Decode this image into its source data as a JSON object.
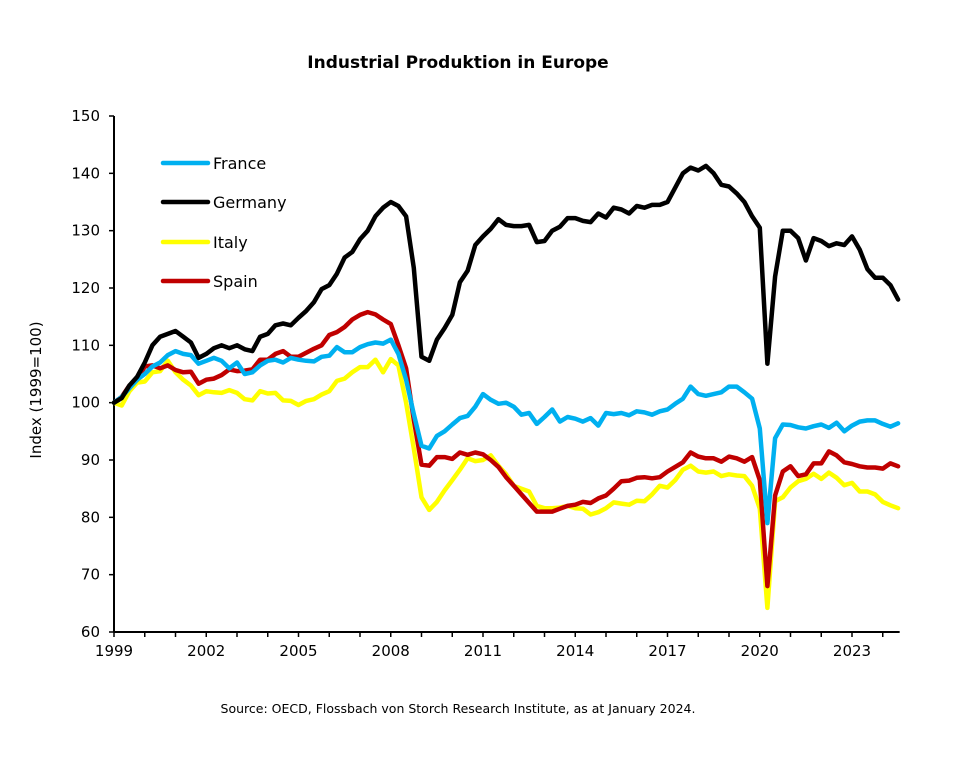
{
  "chart_data": {
    "type": "line",
    "title": "Industrial Produktion in Europe",
    "xlabel": "",
    "ylabel": "Index (1999=100)",
    "source": "Source: OECD, Flossbach von Storch Research Institute, as at January 2024.",
    "xlim": [
      1999,
      2024.55
    ],
    "ylim": [
      60,
      150
    ],
    "x_ticks": [
      "1999",
      "2002",
      "2005",
      "2008",
      "2011",
      "2014",
      "2017",
      "2020",
      "2023"
    ],
    "y_ticks": [
      "60",
      "70",
      "80",
      "90",
      "100",
      "110",
      "120",
      "130",
      "140",
      "150"
    ],
    "grid": false,
    "legend_position": "top-left",
    "x_start": 1999,
    "x_step": 0.25,
    "series": [
      {
        "name": "France",
        "color": "#00b0f0",
        "values": [
          100,
          101,
          102.5,
          104,
          105,
          106.3,
          107,
          108.3,
          109,
          108.5,
          108.3,
          106.8,
          107.3,
          107.8,
          107.3,
          106,
          107,
          105,
          105.3,
          106.5,
          107.3,
          107.5,
          107,
          107.8,
          107.5,
          107.3,
          107.2,
          108,
          108.2,
          109.7,
          108.8,
          108.8,
          109.7,
          110.2,
          110.5,
          110.3,
          111,
          108.5,
          104,
          98,
          92.5,
          92,
          94.2,
          95,
          96.2,
          97.3,
          97.7,
          99.3,
          101.5,
          100.5,
          99.8,
          100,
          99.3,
          97.9,
          98.2,
          96.3,
          97.5,
          98.8,
          96.7,
          97.5,
          97.2,
          96.7,
          97.3,
          96,
          98.2,
          98,
          98.2,
          97.8,
          98.5,
          98.3,
          97.9,
          98.5,
          98.8,
          99.8,
          100.7,
          102.8,
          101.5,
          101.2,
          101.5,
          101.8,
          102.8,
          102.8,
          101.8,
          100.7,
          95.5,
          79,
          93.8,
          96.2,
          96.1,
          95.7,
          95.5,
          95.9,
          96.2,
          95.6,
          96.5,
          95,
          96,
          96.7,
          96.9,
          96.9,
          96.3,
          95.8,
          96.4
        ]
      },
      {
        "name": "Germany",
        "color": "#000000",
        "values": [
          100,
          100.8,
          103,
          104.5,
          107,
          110,
          111.5,
          112,
          112.5,
          111.5,
          110.5,
          107.8,
          108.5,
          109.5,
          110,
          109.5,
          110,
          109.3,
          109,
          111.5,
          112,
          113.5,
          113.8,
          113.5,
          114.8,
          116,
          117.5,
          119.8,
          120.5,
          122.5,
          125.3,
          126.3,
          128.5,
          130,
          132.5,
          134,
          135,
          134.3,
          132.5,
          123.5,
          108,
          107.3,
          111,
          113,
          115.3,
          121,
          123,
          127.5,
          129,
          130.3,
          132,
          131,
          130.8,
          130.8,
          131,
          128,
          128.2,
          130,
          130.7,
          132.2,
          132.2,
          131.7,
          131.5,
          133,
          132.3,
          134,
          133.7,
          133,
          134.3,
          134,
          134.5,
          134.5,
          135,
          137.5,
          140,
          141,
          140.5,
          141.3,
          140,
          138,
          137.7,
          136.5,
          135,
          132.5,
          130.5,
          106.8,
          122,
          130,
          130,
          128.7,
          124.8,
          128.7,
          128.2,
          127.3,
          127.8,
          127.5,
          129,
          126.7,
          123.3,
          121.8,
          121.8,
          120.5,
          118
        ]
      },
      {
        "name": "Italy",
        "color": "#ffff00",
        "values": [
          100,
          99.5,
          102,
          103.5,
          103.7,
          105.3,
          105.5,
          107.3,
          105.3,
          104,
          103,
          101.3,
          102,
          101.8,
          101.7,
          102.2,
          101.7,
          100.6,
          100.4,
          102,
          101.6,
          101.7,
          100.4,
          100.3,
          99.6,
          100.3,
          100.6,
          101.4,
          102,
          103.8,
          104.2,
          105.3,
          106.2,
          106.2,
          107.5,
          105.3,
          107.6,
          106.5,
          100,
          92,
          83.5,
          81.3,
          82.7,
          84.7,
          86.5,
          88.3,
          90.3,
          89.8,
          90,
          90.8,
          89,
          87.5,
          85.5,
          85,
          84.5,
          82,
          81.6,
          81.6,
          81.7,
          82,
          81.6,
          81.5,
          80.5,
          80.9,
          81.6,
          82.6,
          82.4,
          82.2,
          82.9,
          82.8,
          84,
          85.5,
          85.2,
          86.5,
          88.3,
          89,
          88,
          87.8,
          88,
          87.2,
          87.5,
          87.3,
          87.2,
          85.5,
          81.5,
          64.2,
          82.8,
          83.5,
          85.2,
          86.3,
          86.7,
          87.6,
          86.7,
          87.8,
          86.9,
          85.6,
          86,
          84.5,
          84.5,
          84,
          82.7,
          82.1,
          81.6
        ]
      },
      {
        "name": "Spain",
        "color": "#c00000",
        "values": [
          100,
          101,
          103,
          104,
          106.3,
          106.5,
          106,
          106.5,
          105.7,
          105.3,
          105.4,
          103.3,
          104,
          104.2,
          104.8,
          105.8,
          105.5,
          105.6,
          105.8,
          107.5,
          107.5,
          108.5,
          109,
          108,
          108,
          108.7,
          109.4,
          110,
          111.8,
          112.3,
          113.2,
          114.5,
          115.3,
          115.8,
          115.4,
          114.5,
          113.7,
          110,
          106,
          97,
          89.2,
          89,
          90.5,
          90.5,
          90.2,
          91.3,
          90.9,
          91.3,
          91,
          90,
          88.8,
          87,
          85.5,
          84,
          82.5,
          81,
          81,
          81,
          81.5,
          82,
          82.2,
          82.7,
          82.5,
          83.3,
          83.8,
          85,
          86.3,
          86.4,
          86.9,
          87,
          86.8,
          87,
          88,
          88.8,
          89.6,
          91.3,
          90.6,
          90.3,
          90.3,
          89.7,
          90.6,
          90.3,
          89.7,
          90.5,
          86.5,
          68,
          83.8,
          88,
          88.9,
          87.2,
          87.5,
          89.4,
          89.4,
          91.5,
          90.8,
          89.6,
          89.3,
          88.9,
          88.7,
          88.7,
          88.5,
          89.4,
          88.9
        ]
      }
    ]
  }
}
